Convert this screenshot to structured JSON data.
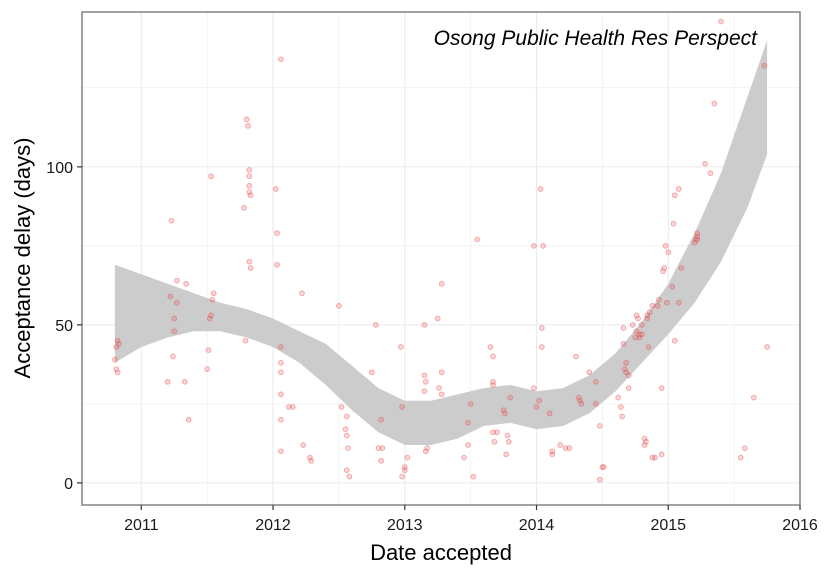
{
  "chart_data": {
    "type": "scatter",
    "title": "",
    "annotation": "Osong Public Health Res Perspect",
    "xlabel": "Date accepted",
    "ylabel": "Acceptance delay (days)",
    "xlim": [
      2010.55,
      2016.0
    ],
    "ylim": [
      -7,
      149
    ],
    "x_ticks": [
      2011,
      2012,
      2013,
      2014,
      2015,
      2016
    ],
    "y_ticks": [
      0,
      50,
      100
    ],
    "grid": true,
    "colors": {
      "points": "#e8474a",
      "band": "#cccccc",
      "grid": "#ebebeb",
      "border": "#8a8a8a"
    },
    "series": [
      {
        "type": "scatter",
        "points": [
          [
            2010.8,
            39
          ],
          [
            2010.81,
            36
          ],
          [
            2010.82,
            35
          ],
          [
            2010.81,
            43
          ],
          [
            2010.82,
            45
          ],
          [
            2010.83,
            44
          ],
          [
            2011.2,
            32
          ],
          [
            2011.22,
            59
          ],
          [
            2011.23,
            83
          ],
          [
            2011.25,
            52
          ],
          [
            2011.25,
            48
          ],
          [
            2011.24,
            40
          ],
          [
            2011.27,
            57
          ],
          [
            2011.27,
            64
          ],
          [
            2011.33,
            32
          ],
          [
            2011.34,
            63
          ],
          [
            2011.36,
            20
          ],
          [
            2011.5,
            36
          ],
          [
            2011.51,
            42
          ],
          [
            2011.52,
            52
          ],
          [
            2011.53,
            97
          ],
          [
            2011.53,
            53
          ],
          [
            2011.54,
            58
          ],
          [
            2011.55,
            60
          ],
          [
            2011.78,
            87
          ],
          [
            2011.79,
            45
          ],
          [
            2011.8,
            115
          ],
          [
            2011.81,
            113
          ],
          [
            2011.82,
            99
          ],
          [
            2011.82,
            97
          ],
          [
            2011.82,
            94
          ],
          [
            2011.82,
            92
          ],
          [
            2011.83,
            91
          ],
          [
            2011.82,
            70
          ],
          [
            2011.83,
            68
          ],
          [
            2012.02,
            93
          ],
          [
            2012.03,
            79
          ],
          [
            2012.03,
            69
          ],
          [
            2012.06,
            134
          ],
          [
            2012.06,
            43
          ],
          [
            2012.06,
            38
          ],
          [
            2012.06,
            35
          ],
          [
            2012.06,
            28
          ],
          [
            2012.06,
            20
          ],
          [
            2012.06,
            10
          ],
          [
            2012.12,
            24
          ],
          [
            2012.15,
            24
          ],
          [
            2012.22,
            60
          ],
          [
            2012.23,
            12
          ],
          [
            2012.28,
            8
          ],
          [
            2012.29,
            7
          ],
          [
            2012.5,
            56
          ],
          [
            2012.52,
            24
          ],
          [
            2012.55,
            17
          ],
          [
            2012.56,
            15
          ],
          [
            2012.57,
            11
          ],
          [
            2012.56,
            4
          ],
          [
            2012.58,
            2
          ],
          [
            2012.56,
            21
          ],
          [
            2012.75,
            35
          ],
          [
            2012.78,
            50
          ],
          [
            2012.8,
            11
          ],
          [
            2012.82,
            7
          ],
          [
            2012.82,
            20
          ],
          [
            2012.83,
            11
          ],
          [
            2012.97,
            43
          ],
          [
            2012.98,
            24
          ],
          [
            2013.0,
            5
          ],
          [
            2013.0,
            4
          ],
          [
            2012.98,
            2
          ],
          [
            2013.02,
            8
          ],
          [
            2013.15,
            50
          ],
          [
            2013.16,
            32
          ],
          [
            2013.15,
            34
          ],
          [
            2013.16,
            10
          ],
          [
            2013.17,
            11
          ],
          [
            2013.15,
            29
          ],
          [
            2013.25,
            52
          ],
          [
            2013.26,
            30
          ],
          [
            2013.28,
            35
          ],
          [
            2013.28,
            63
          ],
          [
            2013.28,
            28
          ],
          [
            2013.45,
            8
          ],
          [
            2013.48,
            19
          ],
          [
            2013.5,
            25
          ],
          [
            2013.48,
            12
          ],
          [
            2013.52,
            2
          ],
          [
            2013.55,
            77
          ],
          [
            2013.65,
            43
          ],
          [
            2013.67,
            40
          ],
          [
            2013.67,
            32
          ],
          [
            2013.67,
            31
          ],
          [
            2013.67,
            16
          ],
          [
            2013.68,
            13
          ],
          [
            2013.7,
            16
          ],
          [
            2013.75,
            23
          ],
          [
            2013.76,
            22
          ],
          [
            2013.77,
            9
          ],
          [
            2013.78,
            15
          ],
          [
            2013.79,
            13
          ],
          [
            2013.8,
            27
          ],
          [
            2013.98,
            75
          ],
          [
            2013.98,
            30
          ],
          [
            2014.0,
            24
          ],
          [
            2014.02,
            26
          ],
          [
            2014.03,
            93
          ],
          [
            2014.05,
            75
          ],
          [
            2014.04,
            49
          ],
          [
            2014.04,
            43
          ],
          [
            2014.1,
            22
          ],
          [
            2014.12,
            10
          ],
          [
            2014.12,
            9
          ],
          [
            2014.18,
            12
          ],
          [
            2014.22,
            11
          ],
          [
            2014.25,
            11
          ],
          [
            2014.3,
            40
          ],
          [
            2014.32,
            27
          ],
          [
            2014.33,
            26
          ],
          [
            2014.34,
            25
          ],
          [
            2014.4,
            35
          ],
          [
            2014.45,
            25
          ],
          [
            2014.45,
            32
          ],
          [
            2014.48,
            18
          ],
          [
            2014.5,
            5
          ],
          [
            2014.51,
            5
          ],
          [
            2014.48,
            1
          ],
          [
            2014.62,
            27
          ],
          [
            2014.64,
            24
          ],
          [
            2014.65,
            21
          ],
          [
            2014.66,
            49
          ],
          [
            2014.66,
            44
          ],
          [
            2014.68,
            38
          ],
          [
            2014.67,
            36
          ],
          [
            2014.68,
            35
          ],
          [
            2014.7,
            34
          ],
          [
            2014.7,
            30
          ],
          [
            2014.73,
            50
          ],
          [
            2014.75,
            46
          ],
          [
            2014.76,
            48
          ],
          [
            2014.76,
            53
          ],
          [
            2014.77,
            52
          ],
          [
            2014.78,
            47
          ],
          [
            2014.78,
            46
          ],
          [
            2014.8,
            50
          ],
          [
            2014.8,
            47
          ],
          [
            2014.82,
            14
          ],
          [
            2014.82,
            12
          ],
          [
            2014.83,
            13
          ],
          [
            2014.84,
            52
          ],
          [
            2014.84,
            53
          ],
          [
            2014.85,
            43
          ],
          [
            2014.86,
            54
          ],
          [
            2014.88,
            56
          ],
          [
            2014.88,
            8
          ],
          [
            2014.9,
            8
          ],
          [
            2014.92,
            56
          ],
          [
            2014.93,
            58
          ],
          [
            2014.95,
            30
          ],
          [
            2014.95,
            9
          ],
          [
            2014.96,
            67
          ],
          [
            2014.97,
            68
          ],
          [
            2014.98,
            75
          ],
          [
            2014.99,
            57
          ],
          [
            2015.0,
            73
          ],
          [
            2015.03,
            62
          ],
          [
            2015.04,
            82
          ],
          [
            2015.05,
            45
          ],
          [
            2015.05,
            91
          ],
          [
            2015.08,
            93
          ],
          [
            2015.08,
            57
          ],
          [
            2015.1,
            68
          ],
          [
            2015.2,
            76
          ],
          [
            2015.21,
            77
          ],
          [
            2015.22,
            79
          ],
          [
            2015.22,
            78
          ],
          [
            2015.22,
            77
          ],
          [
            2015.28,
            101
          ],
          [
            2015.32,
            98
          ],
          [
            2015.35,
            120
          ],
          [
            2015.4,
            146
          ],
          [
            2015.55,
            8
          ],
          [
            2015.58,
            11
          ],
          [
            2015.65,
            27
          ],
          [
            2015.73,
            132
          ],
          [
            2015.75,
            43
          ]
        ]
      },
      {
        "type": "confidence-band",
        "x": [
          2010.8,
          2011.0,
          2011.2,
          2011.4,
          2011.6,
          2011.8,
          2012.0,
          2012.2,
          2012.4,
          2012.6,
          2012.8,
          2013.0,
          2013.2,
          2013.4,
          2013.6,
          2013.8,
          2014.0,
          2014.2,
          2014.4,
          2014.6,
          2014.8,
          2015.0,
          2015.2,
          2015.4,
          2015.6,
          2015.75
        ],
        "upper": [
          69,
          66,
          63,
          60,
          57,
          55,
          52,
          48,
          44,
          37,
          30,
          26,
          26,
          28,
          30,
          31,
          29,
          30,
          34,
          41,
          51,
          63,
          79,
          98,
          122,
          140
        ],
        "lower": [
          38,
          43,
          46,
          48,
          48,
          46,
          43,
          38,
          31,
          23,
          16,
          12,
          12,
          14,
          18,
          19,
          17,
          18,
          22,
          29,
          38,
          47,
          57,
          70,
          87,
          104
        ]
      }
    ]
  }
}
